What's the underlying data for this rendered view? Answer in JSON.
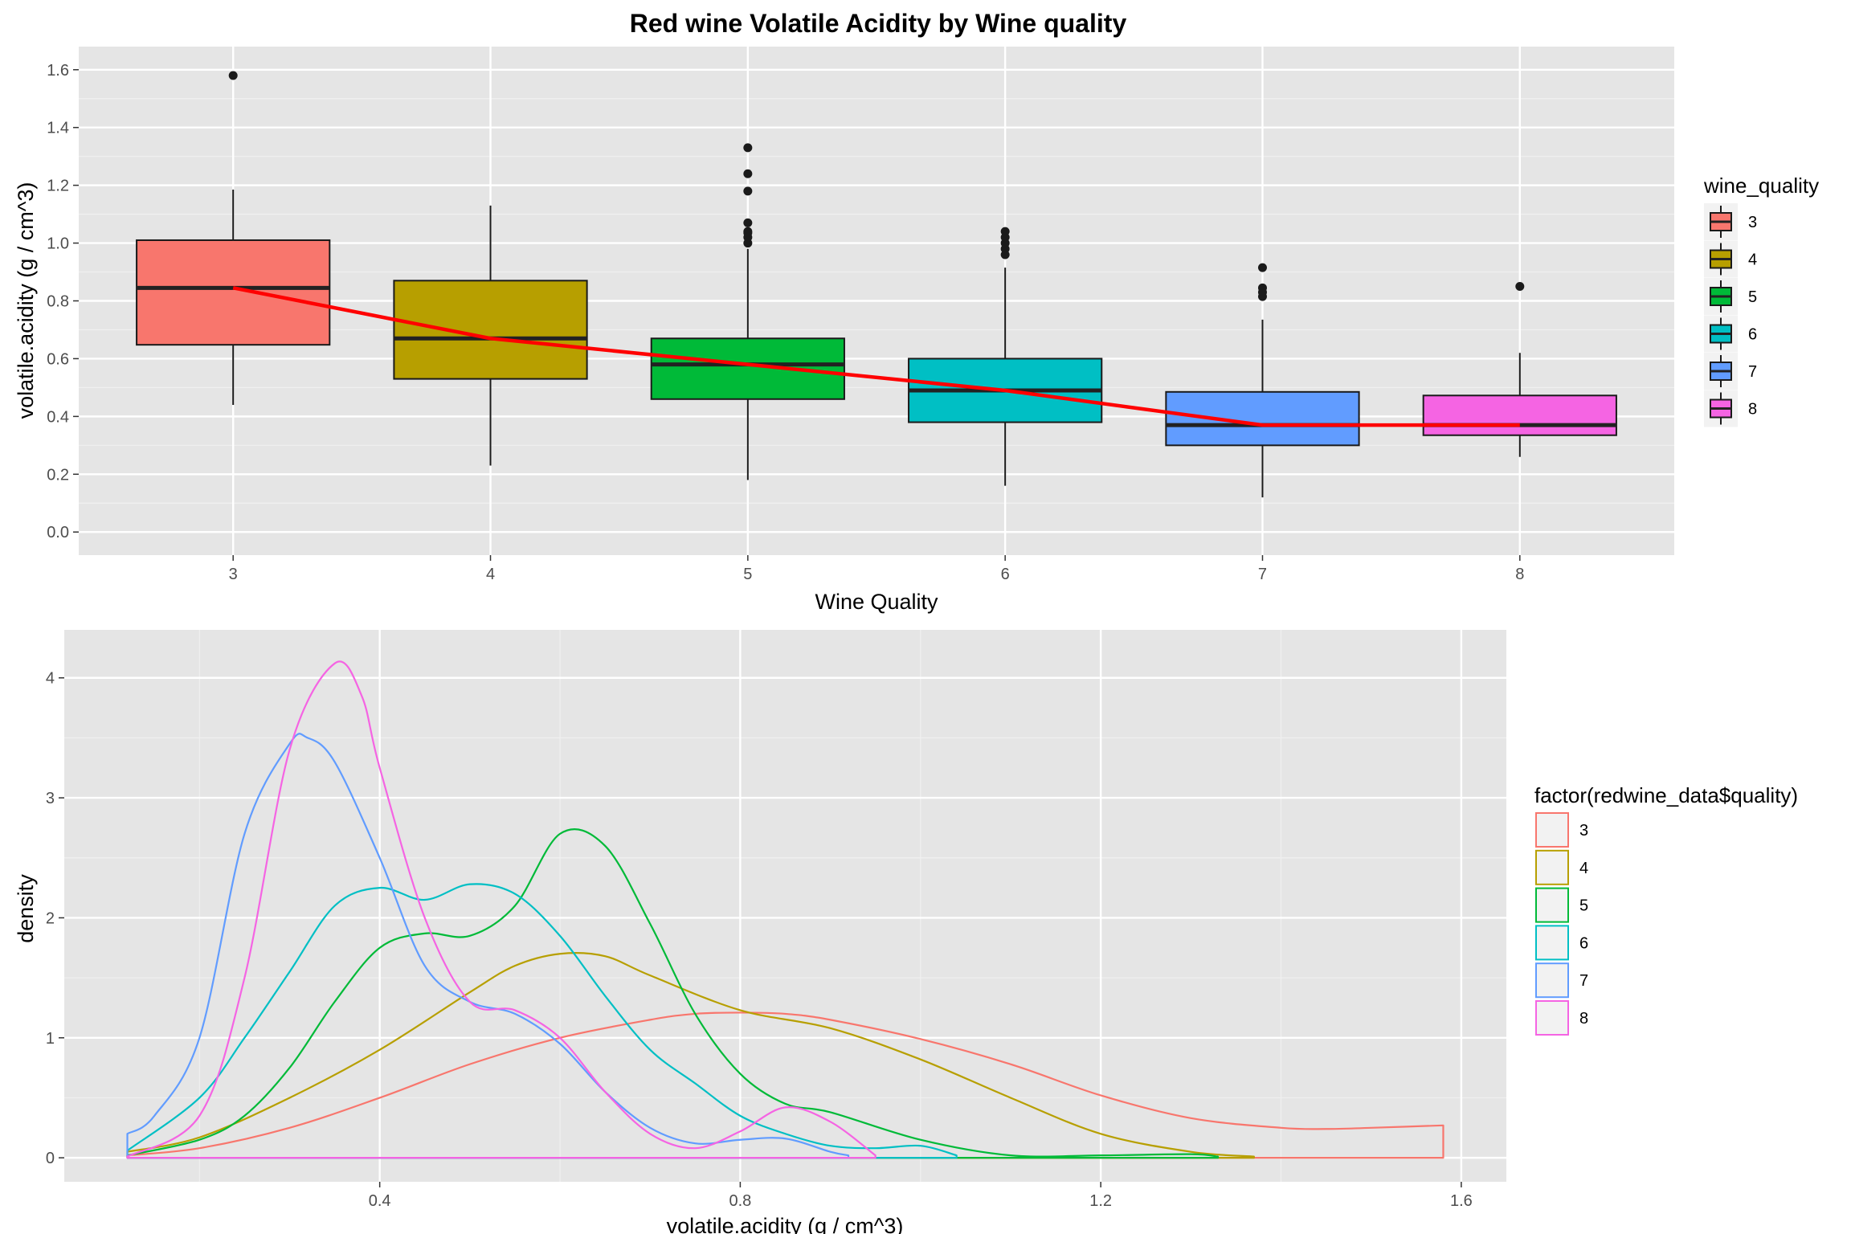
{
  "colors": {
    "panel_bg": "#e5e5e5",
    "grid_major": "#ffffff",
    "grid_minor": "#f0f0f0",
    "trend_line": "#ff0000",
    "box_outline": "#1a1a1a",
    "quality": {
      "3": "#F8766D",
      "4": "#B79F00",
      "5": "#00BA38",
      "6": "#00BFC4",
      "7": "#619CFF",
      "8": "#F564E3"
    }
  },
  "chart_data": [
    {
      "type": "box",
      "title": "Red wine Volatile Acidity by Wine quality",
      "xlabel": "Wine Quality",
      "ylabel": "volatile.acidity (g / cm^3)",
      "categories": [
        "3",
        "4",
        "5",
        "6",
        "7",
        "8"
      ],
      "ylim": [
        -0.08,
        1.68
      ],
      "yticks": [
        0.0,
        0.2,
        0.4,
        0.6,
        0.8,
        1.0,
        1.2,
        1.4,
        1.6
      ],
      "ytick_labels": [
        "0.0",
        "0.2",
        "0.4",
        "0.6",
        "0.8",
        "1.0",
        "1.2",
        "1.4",
        "1.6"
      ],
      "grid": true,
      "legend": {
        "title": "wine_quality",
        "position": "right",
        "entries": [
          "3",
          "4",
          "5",
          "6",
          "7",
          "8"
        ]
      },
      "boxes": [
        {
          "category": "3",
          "lower_whisker": 0.44,
          "q1": 0.648,
          "median": 0.845,
          "q3": 1.01,
          "upper_whisker": 1.185,
          "outliers": [
            1.58
          ]
        },
        {
          "category": "4",
          "lower_whisker": 0.23,
          "q1": 0.53,
          "median": 0.67,
          "q3": 0.87,
          "upper_whisker": 1.13,
          "outliers": []
        },
        {
          "category": "5",
          "lower_whisker": 0.18,
          "q1": 0.46,
          "median": 0.58,
          "q3": 0.67,
          "upper_whisker": 0.98,
          "outliers": [
            1.0,
            1.02,
            1.035,
            1.04,
            1.07,
            1.18,
            1.24,
            1.33
          ]
        },
        {
          "category": "6",
          "lower_whisker": 0.16,
          "q1": 0.38,
          "median": 0.49,
          "q3": 0.6,
          "upper_whisker": 0.915,
          "outliers": [
            0.96,
            0.98,
            1.0,
            1.02,
            1.04
          ]
        },
        {
          "category": "7",
          "lower_whisker": 0.12,
          "q1": 0.3,
          "median": 0.37,
          "q3": 0.485,
          "upper_whisker": 0.735,
          "outliers": [
            0.815,
            0.83,
            0.845,
            0.915
          ]
        },
        {
          "category": "8",
          "lower_whisker": 0.26,
          "q1": 0.335,
          "median": 0.37,
          "q3": 0.4725,
          "upper_whisker": 0.62,
          "outliers": [
            0.85
          ]
        }
      ],
      "trend_line": {
        "x": [
          "3",
          "4",
          "5",
          "6",
          "7",
          "8"
        ],
        "y": [
          0.845,
          0.67,
          0.58,
          0.49,
          0.37,
          0.37
        ]
      }
    },
    {
      "type": "line",
      "subtype": "density",
      "title": "",
      "xlabel": "volatile.acidity (g / cm^3)",
      "ylabel": "density",
      "xlim": [
        0.05,
        1.65
      ],
      "ylim": [
        -0.2,
        4.4
      ],
      "xticks": [
        0.4,
        0.8,
        1.2,
        1.6
      ],
      "xtick_labels": [
        "0.4",
        "0.8",
        "1.2",
        "1.6"
      ],
      "yticks": [
        0,
        1,
        2,
        3,
        4
      ],
      "ytick_labels": [
        "0",
        "1",
        "2",
        "3",
        "4"
      ],
      "grid": true,
      "legend": {
        "title": "factor(redwine_data$quality)",
        "position": "right",
        "entries": [
          "3",
          "4",
          "5",
          "6",
          "7",
          "8"
        ]
      },
      "series": [
        {
          "name": "3",
          "x": [
            0.12,
            0.2,
            0.3,
            0.4,
            0.5,
            0.6,
            0.7,
            0.75,
            0.8,
            0.85,
            0.9,
            1.0,
            1.1,
            1.2,
            1.3,
            1.4,
            1.45,
            1.5,
            1.58
          ],
          "y": [
            0.02,
            0.08,
            0.25,
            0.5,
            0.78,
            1.0,
            1.15,
            1.2,
            1.21,
            1.2,
            1.15,
            0.99,
            0.78,
            0.52,
            0.33,
            0.25,
            0.24,
            0.25,
            0.27
          ]
        },
        {
          "name": "4",
          "x": [
            0.12,
            0.2,
            0.3,
            0.4,
            0.5,
            0.55,
            0.6,
            0.65,
            0.7,
            0.8,
            0.9,
            1.0,
            1.1,
            1.2,
            1.3,
            1.37
          ],
          "y": [
            0.05,
            0.17,
            0.5,
            0.9,
            1.38,
            1.6,
            1.7,
            1.68,
            1.52,
            1.23,
            1.08,
            0.82,
            0.5,
            0.2,
            0.05,
            0.01
          ]
        },
        {
          "name": "5",
          "x": [
            0.12,
            0.2,
            0.25,
            0.3,
            0.35,
            0.4,
            0.45,
            0.5,
            0.55,
            0.6,
            0.65,
            0.7,
            0.75,
            0.8,
            0.85,
            0.9,
            1.0,
            1.1,
            1.2,
            1.3,
            1.33
          ],
          "y": [
            0.02,
            0.15,
            0.35,
            0.75,
            1.3,
            1.75,
            1.87,
            1.85,
            2.1,
            2.7,
            2.6,
            1.95,
            1.2,
            0.7,
            0.45,
            0.38,
            0.15,
            0.02,
            0.02,
            0.03,
            0.01
          ]
        },
        {
          "name": "6",
          "x": [
            0.12,
            0.2,
            0.25,
            0.3,
            0.35,
            0.4,
            0.45,
            0.5,
            0.55,
            0.6,
            0.65,
            0.7,
            0.75,
            0.8,
            0.85,
            0.9,
            0.95,
            1.0,
            1.04
          ],
          "y": [
            0.06,
            0.5,
            1.0,
            1.55,
            2.1,
            2.25,
            2.15,
            2.28,
            2.2,
            1.85,
            1.35,
            0.9,
            0.62,
            0.35,
            0.2,
            0.1,
            0.08,
            0.1,
            0.02
          ]
        },
        {
          "name": "7",
          "x": [
            0.12,
            0.15,
            0.2,
            0.25,
            0.3,
            0.32,
            0.35,
            0.4,
            0.45,
            0.5,
            0.55,
            0.6,
            0.65,
            0.7,
            0.75,
            0.8,
            0.85,
            0.9,
            0.92
          ],
          "y": [
            0.2,
            0.35,
            1.0,
            2.7,
            3.45,
            3.5,
            3.3,
            2.5,
            1.6,
            1.3,
            1.2,
            0.95,
            0.55,
            0.25,
            0.12,
            0.15,
            0.16,
            0.05,
            0.02
          ]
        },
        {
          "name": "8",
          "x": [
            0.12,
            0.2,
            0.25,
            0.3,
            0.35,
            0.38,
            0.4,
            0.45,
            0.5,
            0.55,
            0.6,
            0.65,
            0.7,
            0.75,
            0.8,
            0.85,
            0.9,
            0.95
          ],
          "y": [
            0.01,
            0.35,
            1.5,
            3.4,
            4.12,
            3.85,
            3.25,
            2.0,
            1.3,
            1.23,
            1.0,
            0.55,
            0.2,
            0.08,
            0.22,
            0.42,
            0.3,
            0.02
          ]
        }
      ]
    }
  ]
}
